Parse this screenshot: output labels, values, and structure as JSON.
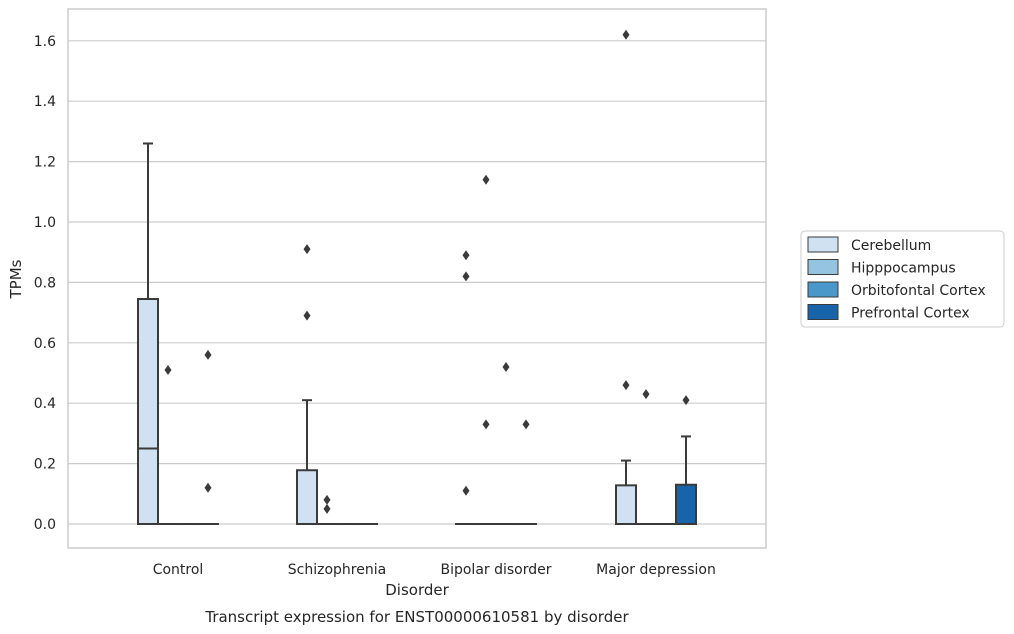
{
  "chart_data": {
    "type": "box",
    "title": "",
    "caption": "Transcript expression for ENST00000610581 by disorder",
    "xlabel": "Disorder",
    "ylabel": "TPMs",
    "ylim": [
      -0.08,
      1.7
    ],
    "yticks": [
      "0.0",
      "0.2",
      "0.4",
      "0.6",
      "0.8",
      "1.0",
      "1.2",
      "1.4",
      "1.6"
    ],
    "grid": true,
    "legend_position": "right",
    "categories": [
      "Control",
      "Schizophrenia",
      "Bipolar disorder",
      "Major depression"
    ],
    "series": [
      {
        "name": "Cerebellum",
        "color": "#d0e1f2",
        "boxes": [
          {
            "q1": 0.0,
            "median": 0.25,
            "q3": 0.745,
            "whisker_low": 0.0,
            "whisker_high": 1.26,
            "outliers": []
          },
          {
            "q1": 0.0,
            "median": 0.0,
            "q3": 0.178,
            "whisker_low": 0.0,
            "whisker_high": 0.41,
            "outliers": [
              0.91,
              0.69
            ]
          },
          {
            "q1": 0.0,
            "median": 0.0,
            "q3": 0.0,
            "whisker_low": 0.0,
            "whisker_high": 0.0,
            "outliers": [
              0.89,
              0.82,
              0.11
            ]
          },
          {
            "q1": 0.0,
            "median": 0.0,
            "q3": 0.128,
            "whisker_low": 0.0,
            "whisker_high": 0.21,
            "outliers": [
              1.62,
              0.46
            ]
          }
        ]
      },
      {
        "name": "Hipppocampus",
        "color": "#94c4df",
        "boxes": [
          {
            "q1": 0.0,
            "median": 0.0,
            "q3": 0.0,
            "whisker_low": 0.0,
            "whisker_high": 0.0,
            "outliers": [
              0.51
            ]
          },
          {
            "q1": 0.0,
            "median": 0.0,
            "q3": 0.0,
            "whisker_low": 0.0,
            "whisker_high": 0.0,
            "outliers": [
              0.08,
              0.05
            ]
          },
          {
            "q1": 0.0,
            "median": 0.0,
            "q3": 0.0,
            "whisker_low": 0.0,
            "whisker_high": 0.0,
            "outliers": [
              1.14,
              0.33
            ]
          },
          {
            "q1": 0.0,
            "median": 0.0,
            "q3": 0.0,
            "whisker_low": 0.0,
            "whisker_high": 0.0,
            "outliers": [
              0.43
            ]
          }
        ]
      },
      {
        "name": "Orbitofontal Cortex",
        "color": "#4a98c9",
        "boxes": [
          {
            "q1": 0.0,
            "median": 0.0,
            "q3": 0.0,
            "whisker_low": 0.0,
            "whisker_high": 0.0,
            "outliers": []
          },
          {
            "q1": 0.0,
            "median": 0.0,
            "q3": 0.0,
            "whisker_low": 0.0,
            "whisker_high": 0.0,
            "outliers": []
          },
          {
            "q1": 0.0,
            "median": 0.0,
            "q3": 0.0,
            "whisker_low": 0.0,
            "whisker_high": 0.0,
            "outliers": [
              0.52
            ]
          },
          {
            "q1": 0.0,
            "median": 0.0,
            "q3": 0.0,
            "whisker_low": 0.0,
            "whisker_high": 0.0,
            "outliers": []
          }
        ]
      },
      {
        "name": "Prefrontal Cortex",
        "color": "#1764ab",
        "boxes": [
          {
            "q1": 0.0,
            "median": 0.0,
            "q3": 0.0,
            "whisker_low": 0.0,
            "whisker_high": 0.0,
            "outliers": [
              0.56,
              0.12
            ]
          },
          {
            "q1": 0.0,
            "median": 0.0,
            "q3": 0.0,
            "whisker_low": 0.0,
            "whisker_high": 0.0,
            "outliers": []
          },
          {
            "q1": 0.0,
            "median": 0.0,
            "q3": 0.0,
            "whisker_low": 0.0,
            "whisker_high": 0.0,
            "outliers": [
              0.33
            ]
          },
          {
            "q1": 0.0,
            "median": 0.0,
            "q3": 0.13,
            "whisker_low": 0.0,
            "whisker_high": 0.29,
            "outliers": [
              0.41
            ]
          }
        ]
      }
    ]
  }
}
